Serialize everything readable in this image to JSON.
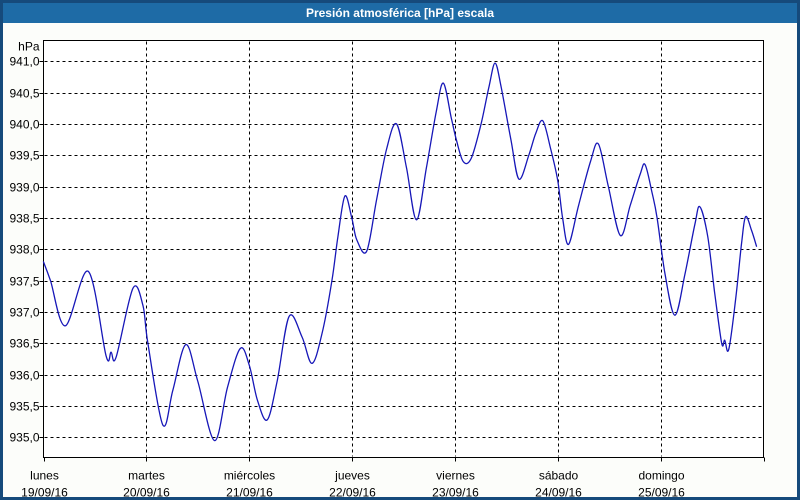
{
  "window": {
    "title": "Presión atmosférica [hPa] escala"
  },
  "colors": {
    "titlebar_bg": "#1e6ba6",
    "titlebar_text": "#ffffff",
    "frame_border": "#164a7b",
    "content_bg": "#fcfdfa",
    "plot_bg": "#ffffff",
    "plot_border": "#000000",
    "grid": "#000000",
    "line": "#1717b8",
    "label_text": "#000000"
  },
  "chart_data": {
    "type": "line",
    "title": "Presión atmosférica [hPa] escala",
    "y_unit_label": "hPa",
    "grid": "dashed",
    "legend": "none",
    "ylim": [
      934.68,
      941.33
    ],
    "xlim_days": [
      0,
      7
    ],
    "y_ticks": [
      {
        "label": "941,0",
        "value": 941.0
      },
      {
        "label": "940,5",
        "value": 940.5
      },
      {
        "label": "940,0",
        "value": 940.0
      },
      {
        "label": "939,5",
        "value": 939.5
      },
      {
        "label": "939,0",
        "value": 939.0
      },
      {
        "label": "938,5",
        "value": 938.5
      },
      {
        "label": "938,0",
        "value": 938.0
      },
      {
        "label": "937,5",
        "value": 937.5
      },
      {
        "label": "937,0",
        "value": 937.0
      },
      {
        "label": "936,5",
        "value": 936.5
      },
      {
        "label": "936,0",
        "value": 936.0
      },
      {
        "label": "935,5",
        "value": 935.5
      },
      {
        "label": "935,0",
        "value": 935.0
      }
    ],
    "x_days": [
      {
        "name": "lunes",
        "date": "19/09/16"
      },
      {
        "name": "martes",
        "date": "20/09/16"
      },
      {
        "name": "miércoles",
        "date": "21/09/16"
      },
      {
        "name": "jueves",
        "date": "22/09/16"
      },
      {
        "name": "viernes",
        "date": "23/09/16"
      },
      {
        "name": "sábado",
        "date": "24/09/16"
      },
      {
        "name": "domingo",
        "date": "25/09/16"
      }
    ],
    "series": [
      {
        "name": "Presión atmosférica",
        "color": "#1717b8",
        "t_days": [
          0.0,
          0.068,
          0.213,
          0.435,
          0.609,
          0.657,
          0.706,
          0.87,
          0.967,
          1.015,
          1.16,
          1.257,
          1.383,
          1.499,
          1.663,
          1.789,
          1.914,
          2.001,
          2.079,
          2.175,
          2.272,
          2.388,
          2.514,
          2.61,
          2.707,
          2.804,
          2.862,
          2.93,
          2.997,
          3.046,
          3.142,
          3.239,
          3.336,
          3.432,
          3.529,
          3.626,
          3.723,
          3.819,
          3.887,
          3.964,
          4.013,
          4.08,
          4.158,
          4.254,
          4.332,
          4.39,
          4.448,
          4.544,
          4.622,
          4.718,
          4.786,
          4.854,
          4.931,
          4.999,
          5.047,
          5.105,
          5.202,
          5.318,
          5.395,
          5.492,
          5.608,
          5.704,
          5.801,
          5.849,
          5.917,
          5.966,
          6.043,
          6.139,
          6.236,
          6.333,
          6.381,
          6.458,
          6.526,
          6.594,
          6.623,
          6.662,
          6.729,
          6.787,
          6.826,
          6.884,
          6.932
        ],
        "values_hpa": [
          937.8,
          937.5,
          936.78,
          937.65,
          936.3,
          936.36,
          936.28,
          937.38,
          937.1,
          936.5,
          935.2,
          935.75,
          936.48,
          935.9,
          934.95,
          935.8,
          936.42,
          936.15,
          935.6,
          935.28,
          935.9,
          936.93,
          936.6,
          936.18,
          936.65,
          937.5,
          938.2,
          938.85,
          938.5,
          938.15,
          937.97,
          938.8,
          939.6,
          940.0,
          939.3,
          938.47,
          939.3,
          940.2,
          940.65,
          940.1,
          939.75,
          939.4,
          939.45,
          940.0,
          940.6,
          940.97,
          940.6,
          939.75,
          939.12,
          939.5,
          939.85,
          940.05,
          939.6,
          939.1,
          938.5,
          938.08,
          938.7,
          939.4,
          939.68,
          939.0,
          938.22,
          938.7,
          939.2,
          939.35,
          938.9,
          938.5,
          937.6,
          936.95,
          937.6,
          938.4,
          938.68,
          938.2,
          937.3,
          936.5,
          936.55,
          936.4,
          937.2,
          938.1,
          938.52,
          938.3,
          938.05
        ]
      }
    ]
  }
}
